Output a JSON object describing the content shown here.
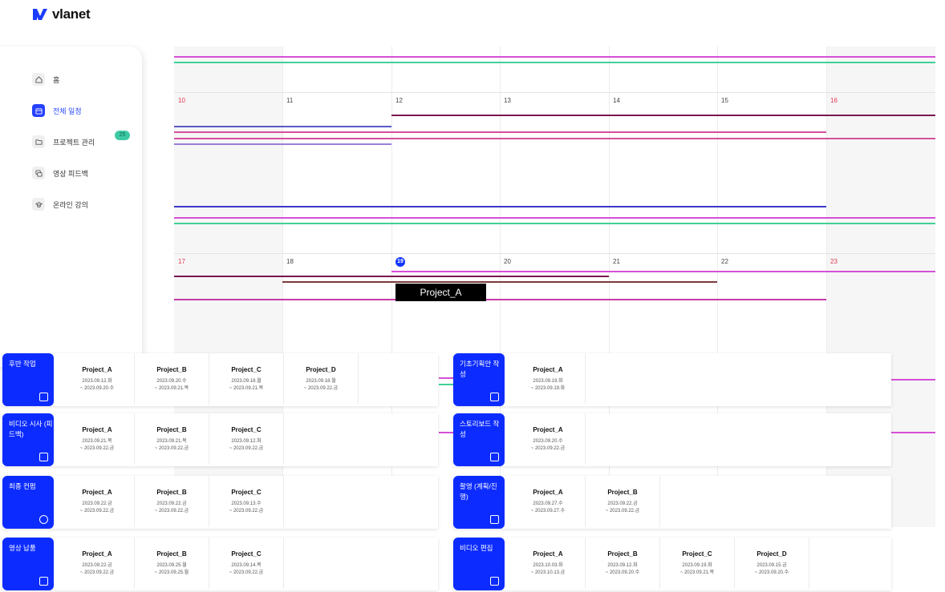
{
  "brand": {
    "name": "vlanet",
    "color": "#1a3cff"
  },
  "nav": [
    {
      "label": "홈",
      "icon": "home-icon"
    },
    {
      "label": "전체 일정",
      "icon": "calendar-icon",
      "active": true
    },
    {
      "label": "프로젝트 관리",
      "icon": "folder-icon",
      "badge": "25"
    },
    {
      "label": "영상 피드백",
      "icon": "chat-icon"
    },
    {
      "label": "온라인 강의",
      "icon": "graduation-cap-icon"
    }
  ],
  "calendar": {
    "week1": [
      "10",
      "11",
      "12",
      "13",
      "14",
      "15",
      "16"
    ],
    "week2": [
      "17",
      "18",
      "19",
      "20",
      "21",
      "22",
      "23"
    ],
    "today": "19",
    "tooltip": "Project_A"
  },
  "groups": [
    {
      "title": "후반 작업",
      "icon": "film-icon",
      "projects": [
        {
          "name": "Project_A",
          "start": "2023.09.12.화",
          "end": "~ 2023.09.20.수"
        },
        {
          "name": "Project_B",
          "start": "2023.09.20.수",
          "end": "~ 2023.09.21.목"
        },
        {
          "name": "Project_C",
          "start": "2023.09.18.월",
          "end": "~ 2023.09.21.목"
        },
        {
          "name": "Project_D",
          "start": "2023.09.18.월",
          "end": "~ 2023.09.22.금"
        }
      ]
    },
    {
      "title": "비디오 시사 (피드백)",
      "icon": "screen-icon",
      "projects": [
        {
          "name": "Project_A",
          "start": "2023.09.21.목",
          "end": "~ 2023.09.22.금"
        },
        {
          "name": "Project_B",
          "start": "2023.09.21.목",
          "end": "~ 2023.09.22.금"
        },
        {
          "name": "Project_C",
          "start": "2023.09.12.화",
          "end": "~ 2023.09.22.금"
        }
      ]
    },
    {
      "title": "최종 컨펌",
      "icon": "check-circle-icon",
      "projects": [
        {
          "name": "Project_A",
          "start": "2023.09.22.금",
          "end": "~ 2023.09.22.금"
        },
        {
          "name": "Project_B",
          "start": "2023.09.22.금",
          "end": "~ 2023.09.22.금"
        },
        {
          "name": "Project_C",
          "start": "2023.09.13.수",
          "end": "~ 2023.09.22.금"
        }
      ]
    },
    {
      "title": "영상 납품",
      "icon": "send-icon",
      "projects": [
        {
          "name": "Project_A",
          "start": "2023.09.22.금",
          "end": "~ 2023.09.22.금"
        },
        {
          "name": "Project_B",
          "start": "2023.09.25.월",
          "end": "~ 2023.09.25.월"
        },
        {
          "name": "Project_C",
          "start": "2023.09.14.목",
          "end": "~ 2023.09.22.금"
        }
      ]
    },
    {
      "title": "기초기획안 작성",
      "icon": "edit-icon",
      "projects": [
        {
          "name": "Project_A",
          "start": "2023.09.19.화",
          "end": "~ 2023.09.19.화"
        }
      ]
    },
    {
      "title": "스토리보드 작성",
      "icon": "edit-icon",
      "projects": [
        {
          "name": "Project_A",
          "start": "2023.09.20.수",
          "end": "~ 2023.09.22.금"
        }
      ]
    },
    {
      "title": "촬영 (계획/진행)",
      "icon": "video-camera-icon",
      "projects": [
        {
          "name": "Project_A",
          "start": "2023.09.27.수",
          "end": "~ 2023.09.27.수"
        },
        {
          "name": "Project_B",
          "start": "2023.09.22.금",
          "end": "~ 2023.09.22.금"
        }
      ]
    },
    {
      "title": "비디오 편집",
      "icon": "document-icon",
      "projects": [
        {
          "name": "Project_A",
          "start": "2023.10.03.화",
          "end": "~ 2023.10.13.금"
        },
        {
          "name": "Project_B",
          "start": "2023.09.12.화",
          "end": "~ 2023.09.20.수"
        },
        {
          "name": "Project_C",
          "start": "2023.09.19.화",
          "end": "~ 2023.09.21.목"
        },
        {
          "name": "Project_D",
          "start": "2023.09.15.금",
          "end": "~ 2023.09.20.수"
        }
      ]
    }
  ]
}
